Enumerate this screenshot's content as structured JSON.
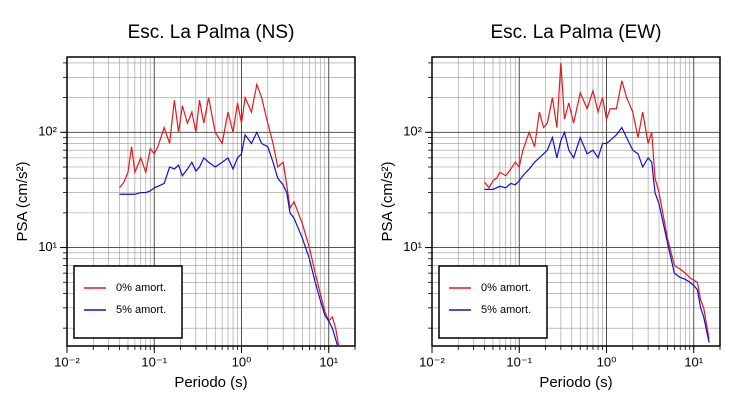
{
  "chart_data": [
    {
      "type": "line",
      "title": "Esc. La Palma (NS)",
      "x_label": "Periodo (s)",
      "y_label": "PSA (cm/s²)",
      "log_x": true,
      "log_y": true,
      "grid": true,
      "minor_grid": true,
      "legend": "lower left",
      "xlim": [
        0.01,
        20
      ],
      "ylim": [
        1.4,
        450
      ],
      "xticks": [
        {
          "value": 0.01,
          "label": "10⁻²"
        },
        {
          "value": 0.1,
          "label": "10⁻¹"
        },
        {
          "value": 1,
          "label": "10⁰"
        },
        {
          "value": 10,
          "label": "10¹"
        }
      ],
      "yticks": [
        {
          "value": 10,
          "label": "10¹"
        },
        {
          "value": 100,
          "label": "10²"
        }
      ],
      "x": [
        0.04,
        0.045,
        0.05,
        0.055,
        0.06,
        0.07,
        0.08,
        0.09,
        0.1,
        0.11,
        0.13,
        0.15,
        0.17,
        0.19,
        0.21,
        0.24,
        0.27,
        0.3,
        0.33,
        0.37,
        0.42,
        0.5,
        0.6,
        0.7,
        0.8,
        0.9,
        1.0,
        1.1,
        1.3,
        1.5,
        1.7,
        2.0,
        2.3,
        2.6,
        3.0,
        3.3,
        3.6,
        4,
        5,
        6,
        7,
        8,
        9,
        10,
        11,
        12,
        13
      ],
      "series": [
        {
          "name": "0% amort.",
          "color": "#e41a1c",
          "values": [
            33,
            37,
            45,
            75,
            45,
            60,
            45,
            72,
            65,
            75,
            110,
            80,
            190,
            100,
            170,
            120,
            150,
            100,
            190,
            120,
            200,
            100,
            80,
            150,
            100,
            180,
            120,
            200,
            150,
            260,
            200,
            120,
            80,
            50,
            55,
            35,
            22,
            25,
            16,
            10,
            6,
            4,
            2.8,
            2.3,
            2.5,
            2,
            1.4
          ]
        },
        {
          "name": "5% amort.",
          "color": "#1010d0",
          "values": [
            29,
            29,
            29,
            29,
            29,
            30,
            30,
            31,
            33,
            34,
            36,
            50,
            48,
            52,
            42,
            48,
            55,
            46,
            50,
            60,
            55,
            50,
            55,
            60,
            48,
            60,
            65,
            95,
            80,
            100,
            80,
            75,
            55,
            40,
            35,
            30,
            20,
            18,
            12,
            8,
            5,
            3.5,
            2.6,
            2.3,
            2.0,
            1.6,
            1.3
          ]
        }
      ]
    },
    {
      "type": "line",
      "title": "Esc. La Palma (EW)",
      "x_label": "Periodo (s)",
      "y_label": "PSA (cm/s²)",
      "log_x": true,
      "log_y": true,
      "grid": true,
      "minor_grid": true,
      "legend": "lower left",
      "xlim": [
        0.01,
        20
      ],
      "ylim": [
        1.4,
        450
      ],
      "xticks": [
        {
          "value": 0.01,
          "label": "10⁻²"
        },
        {
          "value": 0.1,
          "label": "10⁻¹"
        },
        {
          "value": 1,
          "label": "10⁰"
        },
        {
          "value": 10,
          "label": "10¹"
        }
      ],
      "yticks": [
        {
          "value": 10,
          "label": "10¹"
        },
        {
          "value": 100,
          "label": "10²"
        }
      ],
      "x": [
        0.04,
        0.045,
        0.05,
        0.055,
        0.06,
        0.07,
        0.08,
        0.09,
        0.1,
        0.11,
        0.13,
        0.15,
        0.17,
        0.19,
        0.21,
        0.24,
        0.27,
        0.3,
        0.33,
        0.37,
        0.42,
        0.5,
        0.6,
        0.7,
        0.8,
        0.9,
        1.0,
        1.1,
        1.3,
        1.5,
        1.7,
        2.0,
        2.3,
        2.6,
        3.0,
        3.3,
        3.6,
        4,
        5,
        6,
        7,
        8,
        9,
        10,
        11,
        12,
        13,
        15
      ],
      "series": [
        {
          "name": "0% amort.",
          "color": "#e41a1c",
          "values": [
            37,
            33,
            38,
            40,
            45,
            42,
            48,
            55,
            50,
            70,
            100,
            75,
            150,
            110,
            120,
            200,
            110,
            400,
            130,
            180,
            120,
            220,
            160,
            230,
            150,
            200,
            130,
            160,
            160,
            280,
            200,
            150,
            90,
            150,
            80,
            100,
            40,
            30,
            12,
            7,
            6.5,
            6,
            5.5,
            5.2,
            5,
            3.5,
            3,
            1.6
          ]
        },
        {
          "name": "5% amort.",
          "color": "#1010d0",
          "values": [
            32,
            32,
            32,
            33,
            34,
            33,
            36,
            35,
            38,
            42,
            48,
            55,
            60,
            65,
            70,
            90,
            60,
            85,
            100,
            70,
            60,
            90,
            65,
            70,
            60,
            80,
            80,
            85,
            95,
            110,
            90,
            70,
            65,
            50,
            60,
            55,
            30,
            24,
            11,
            6,
            5.5,
            5.3,
            5.0,
            4.7,
            4.3,
            3.0,
            2.5,
            1.5
          ]
        }
      ]
    }
  ]
}
